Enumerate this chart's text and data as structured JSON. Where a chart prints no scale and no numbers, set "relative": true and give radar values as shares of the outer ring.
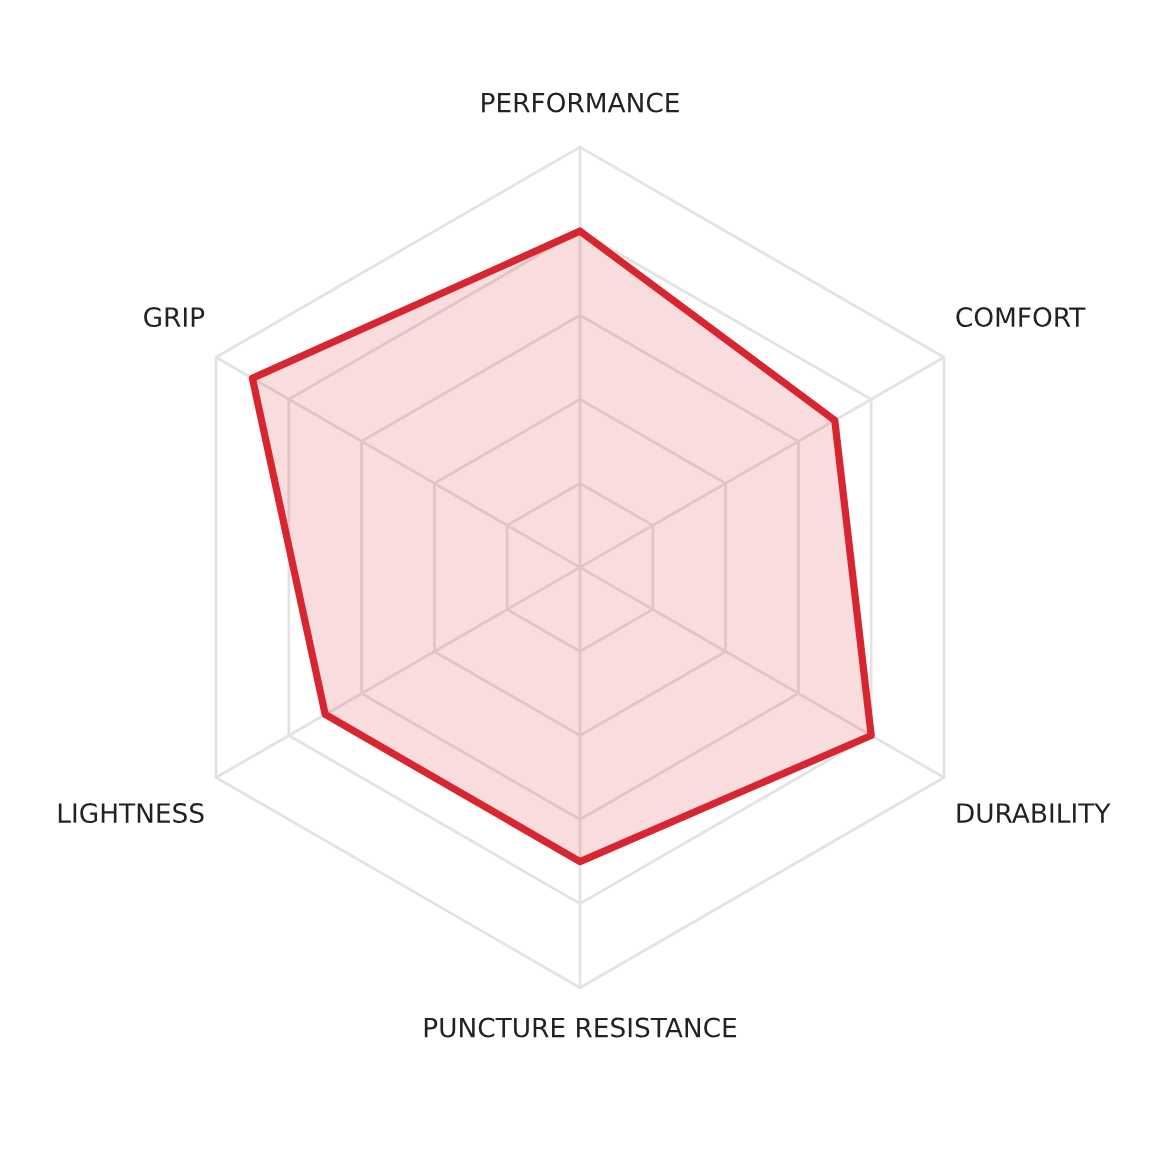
{
  "chart_data": {
    "type": "radar",
    "relative": true,
    "grid": true,
    "categories": [
      "PERFORMANCE",
      "COMFORT",
      "DURABILITY",
      "PUNCTURE RESISTANCE",
      "LIGHTNESS",
      "GRIP"
    ],
    "series": [
      {
        "color": "#d7262f",
        "values": [
          0.8,
          0.7,
          0.8,
          0.7,
          0.7,
          0.9
        ]
      }
    ]
  }
}
